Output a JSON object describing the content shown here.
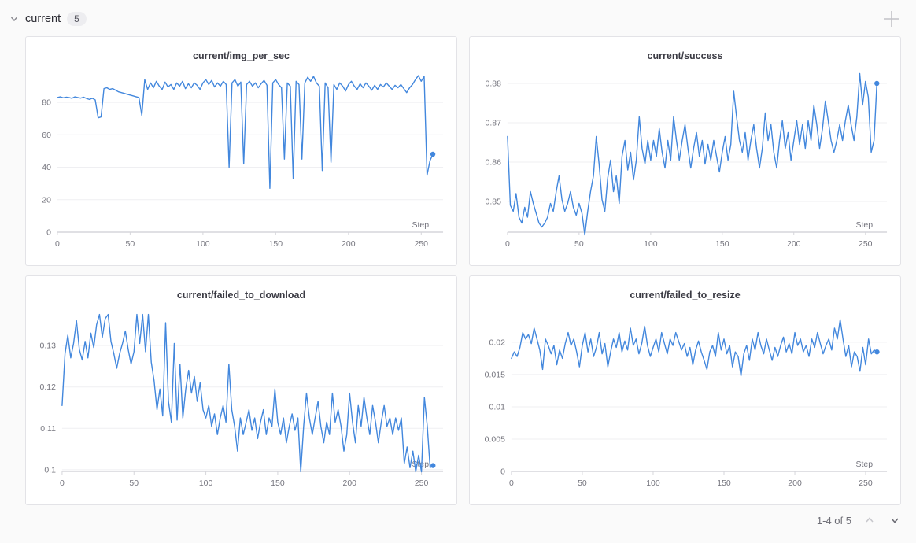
{
  "section": {
    "title": "current",
    "count": "5"
  },
  "pagination": {
    "label": "1-4 of 5"
  },
  "colors": {
    "line": "#4287dd",
    "grid": "#efeff2",
    "axis": "#d6d6db",
    "tick_text": "#75757e",
    "panel_border": "#e3e3e7",
    "page_bg": "#fafafa"
  },
  "chart_data": [
    {
      "type": "line",
      "title": "current/img_per_sec",
      "xlabel": "Step",
      "x_ticks": [
        0,
        50,
        100,
        150,
        200,
        250
      ],
      "x_start": 0,
      "x_step": 2,
      "x_max": 265,
      "y_ticks": [
        0,
        20,
        40,
        60,
        80
      ],
      "y_tick_labels": [
        "0",
        "20",
        "40",
        "60",
        "80"
      ],
      "ylim": [
        0,
        97.5
      ],
      "grid": true,
      "end_marker": true,
      "values": [
        83,
        83.4,
        82.8,
        83.2,
        83,
        82.5,
        83.4,
        83,
        82.6,
        83.2,
        82.4,
        81.8,
        82.5,
        81.5,
        70.5,
        71,
        88.5,
        89,
        88,
        88.5,
        87.5,
        86.5,
        86,
        85.5,
        85,
        84.5,
        84,
        83.5,
        83,
        72,
        94,
        88,
        92,
        89,
        93,
        90,
        88,
        92.5,
        89.5,
        91,
        88,
        92,
        90,
        93,
        88.5,
        91.5,
        89,
        92,
        90.5,
        88,
        92,
        94,
        91,
        93.5,
        89.5,
        92,
        90,
        93,
        91,
        40,
        92,
        94,
        90,
        92.5,
        42,
        91,
        93,
        90,
        92,
        89,
        91.5,
        93.5,
        90.5,
        27,
        92,
        94,
        91,
        89,
        45,
        92,
        90,
        33,
        93,
        91,
        45,
        92,
        95.5,
        93,
        96,
        92,
        90,
        38,
        92,
        89,
        43,
        91,
        88,
        92,
        90,
        87,
        91,
        93,
        90,
        88,
        91.5,
        89,
        92,
        90,
        87.5,
        90.5,
        88,
        91,
        89.5,
        92,
        90,
        88,
        90.5,
        89,
        91,
        88.5,
        86,
        89,
        91,
        94,
        96.5,
        93,
        96,
        35,
        44,
        48
      ]
    },
    {
      "type": "line",
      "title": "current/success",
      "xlabel": "Step",
      "x_ticks": [
        0,
        50,
        100,
        150,
        200,
        250
      ],
      "x_start": 0,
      "x_step": 2,
      "x_max": 265,
      "y_ticks": [
        0.85,
        0.86,
        0.87,
        0.88
      ],
      "y_tick_labels": [
        "0.85",
        "0.86",
        "0.87",
        "0.88"
      ],
      "ylim": [
        0.8422,
        0.8824
      ],
      "grid": true,
      "end_marker": true,
      "values": [
        0.8665,
        0.849,
        0.8475,
        0.852,
        0.846,
        0.8445,
        0.8485,
        0.846,
        0.8525,
        0.8495,
        0.847,
        0.8445,
        0.8435,
        0.8445,
        0.846,
        0.8495,
        0.8475,
        0.8525,
        0.8565,
        0.8505,
        0.8475,
        0.8495,
        0.8525,
        0.8485,
        0.8465,
        0.8495,
        0.847,
        0.8415,
        0.8475,
        0.8525,
        0.8565,
        0.8665,
        0.8595,
        0.8505,
        0.8475,
        0.856,
        0.8605,
        0.8525,
        0.8565,
        0.8495,
        0.8615,
        0.8655,
        0.858,
        0.8625,
        0.8555,
        0.8605,
        0.8715,
        0.8635,
        0.8595,
        0.8655,
        0.8605,
        0.8655,
        0.8615,
        0.8685,
        0.8625,
        0.8585,
        0.8655,
        0.8605,
        0.8715,
        0.8655,
        0.8605,
        0.8655,
        0.8695,
        0.8635,
        0.8585,
        0.8635,
        0.8675,
        0.8615,
        0.8655,
        0.8595,
        0.8645,
        0.8605,
        0.8655,
        0.8615,
        0.8575,
        0.8625,
        0.8665,
        0.8605,
        0.8645,
        0.878,
        0.8715,
        0.8655,
        0.8625,
        0.8675,
        0.8605,
        0.8655,
        0.8695,
        0.8635,
        0.8585,
        0.8635,
        0.8725,
        0.8655,
        0.8695,
        0.8625,
        0.8585,
        0.8655,
        0.8705,
        0.8635,
        0.8675,
        0.8605,
        0.8655,
        0.8705,
        0.8645,
        0.8695,
        0.8635,
        0.8705,
        0.8655,
        0.8745,
        0.8695,
        0.8635,
        0.8685,
        0.8755,
        0.8705,
        0.8655,
        0.8625,
        0.8655,
        0.8695,
        0.8655,
        0.8705,
        0.8745,
        0.8695,
        0.8655,
        0.8715,
        0.8825,
        0.8745,
        0.8805,
        0.8765,
        0.8625,
        0.8655,
        0.88
      ]
    },
    {
      "type": "line",
      "title": "current/failed_to_download",
      "xlabel": "Step",
      "x_ticks": [
        0,
        50,
        100,
        150,
        200,
        250
      ],
      "x_start": 0,
      "x_step": 2,
      "x_max": 265,
      "y_ticks": [
        0.1,
        0.11,
        0.12,
        0.13
      ],
      "y_tick_labels": [
        "0.1",
        "0.11",
        "0.12",
        "0.13"
      ],
      "ylim": [
        0.0996,
        0.1378
      ],
      "grid": true,
      "end_marker": true,
      "values": [
        0.1155,
        0.128,
        0.1325,
        0.127,
        0.1305,
        0.136,
        0.129,
        0.1265,
        0.131,
        0.127,
        0.133,
        0.1295,
        0.135,
        0.1375,
        0.132,
        0.1365,
        0.1375,
        0.131,
        0.128,
        0.1245,
        0.128,
        0.1305,
        0.1335,
        0.129,
        0.1255,
        0.1285,
        0.1375,
        0.1305,
        0.1375,
        0.1285,
        0.1375,
        0.126,
        0.1215,
        0.1145,
        0.1195,
        0.113,
        0.1355,
        0.1165,
        0.1115,
        0.1305,
        0.112,
        0.1255,
        0.1125,
        0.1195,
        0.124,
        0.1185,
        0.1225,
        0.1165,
        0.121,
        0.1145,
        0.1125,
        0.1155,
        0.1105,
        0.1135,
        0.1085,
        0.1125,
        0.1155,
        0.1115,
        0.1255,
        0.1145,
        0.1105,
        0.1045,
        0.1125,
        0.1085,
        0.1115,
        0.1145,
        0.1095,
        0.1125,
        0.1075,
        0.1115,
        0.1145,
        0.1085,
        0.1125,
        0.1105,
        0.1195,
        0.1115,
        0.1085,
        0.1125,
        0.1065,
        0.1105,
        0.1135,
        0.1095,
        0.1125,
        0.0995,
        0.1105,
        0.1185,
        0.1125,
        0.1085,
        0.1125,
        0.1165,
        0.1105,
        0.1065,
        0.1115,
        0.1085,
        0.1185,
        0.1115,
        0.1145,
        0.1105,
        0.1045,
        0.1085,
        0.1185,
        0.1115,
        0.1065,
        0.1155,
        0.1105,
        0.1175,
        0.1125,
        0.1085,
        0.1155,
        0.1115,
        0.1065,
        0.1115,
        0.1155,
        0.1105,
        0.1125,
        0.1085,
        0.1125,
        0.1095,
        0.1125,
        0.1015,
        0.1055,
        0.1005,
        0.1045,
        0.0995,
        0.1035,
        0.0995,
        0.1175,
        0.1105,
        0.1005,
        0.101
      ]
    },
    {
      "type": "line",
      "title": "current/failed_to_resize",
      "xlabel": "Step",
      "x_ticks": [
        0,
        50,
        100,
        150,
        200,
        250
      ],
      "x_start": 0,
      "x_step": 2,
      "x_max": 265,
      "y_ticks": [
        0,
        0.005,
        0.01,
        0.015,
        0.02
      ],
      "y_tick_labels": [
        "0",
        "0.005",
        "0.01",
        "0.015",
        "0.02"
      ],
      "ylim": [
        0,
        0.0245
      ],
      "grid": true,
      "end_marker": true,
      "values": [
        0.0175,
        0.0185,
        0.0178,
        0.0192,
        0.0215,
        0.0205,
        0.0212,
        0.0198,
        0.0222,
        0.0205,
        0.0188,
        0.0158,
        0.0205,
        0.0195,
        0.0182,
        0.0195,
        0.0165,
        0.0188,
        0.0175,
        0.0198,
        0.0215,
        0.0195,
        0.0205,
        0.0185,
        0.0162,
        0.0195,
        0.0215,
        0.0185,
        0.0205,
        0.0178,
        0.0192,
        0.0215,
        0.0182,
        0.0198,
        0.0162,
        0.0185,
        0.0205,
        0.0192,
        0.0215,
        0.0185,
        0.0202,
        0.0188,
        0.0222,
        0.0195,
        0.0205,
        0.0182,
        0.0198,
        0.0225,
        0.0195,
        0.0178,
        0.0192,
        0.0205,
        0.0185,
        0.0215,
        0.0198,
        0.0182,
        0.0205,
        0.0195,
        0.0215,
        0.0202,
        0.0188,
        0.0198,
        0.0178,
        0.0192,
        0.0165,
        0.0188,
        0.0202,
        0.0185,
        0.0172,
        0.0158,
        0.0185,
        0.0195,
        0.0178,
        0.0215,
        0.0188,
        0.0205,
        0.0182,
        0.0195,
        0.0162,
        0.0185,
        0.0178,
        0.0148,
        0.0182,
        0.0195,
        0.0172,
        0.0205,
        0.0188,
        0.0215,
        0.0195,
        0.0182,
        0.0205,
        0.0188,
        0.0172,
        0.0192,
        0.0178,
        0.0195,
        0.0208,
        0.0185,
        0.0198,
        0.0182,
        0.0215,
        0.0195,
        0.0205,
        0.0185,
        0.0195,
        0.0178,
        0.0205,
        0.0192,
        0.0215,
        0.0198,
        0.0182,
        0.0195,
        0.0205,
        0.0188,
        0.0222,
        0.0205,
        0.0235,
        0.0205,
        0.0178,
        0.0195,
        0.0162,
        0.0185,
        0.0178,
        0.0155,
        0.0192,
        0.0165,
        0.0205,
        0.0182,
        0.0188,
        0.0185
      ]
    }
  ]
}
